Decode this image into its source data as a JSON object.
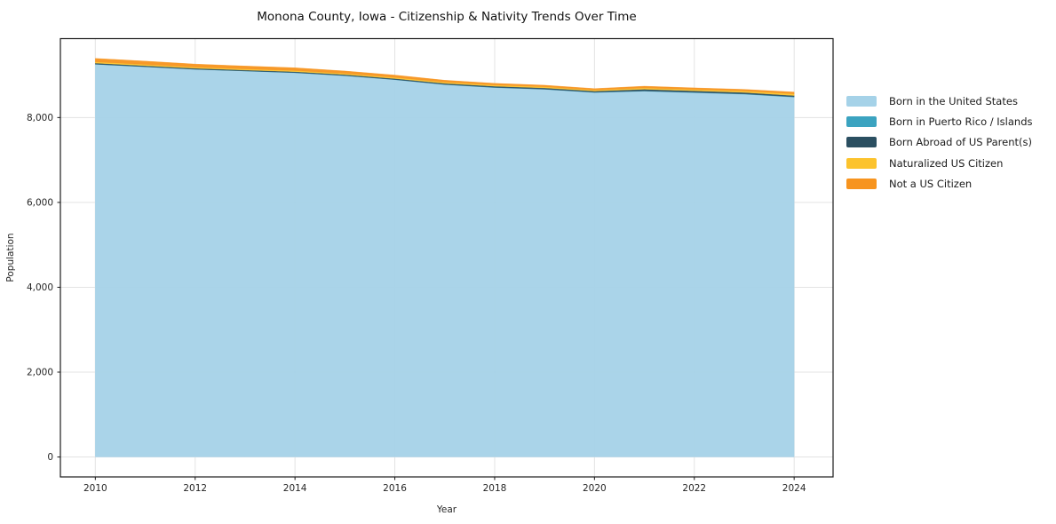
{
  "chart_data": {
    "type": "area",
    "stacked": true,
    "title": "Monona County, Iowa - Citizenship & Nativity Trends Over Time",
    "xlabel": "Year",
    "ylabel": "Population",
    "x": [
      2010,
      2011,
      2012,
      2013,
      2014,
      2015,
      2016,
      2017,
      2018,
      2019,
      2020,
      2021,
      2022,
      2023,
      2024
    ],
    "series": [
      {
        "name": "Born in the United States",
        "color": "#a5d2e8",
        "values": [
          9255,
          9195,
          9135,
          9095,
          9055,
          8985,
          8890,
          8775,
          8705,
          8665,
          8590,
          8620,
          8585,
          8550,
          8480
        ]
      },
      {
        "name": "Born in Puerto Rico / Islands",
        "color": "#3ba3c0",
        "values": [
          3,
          3,
          3,
          3,
          4,
          4,
          4,
          5,
          5,
          5,
          6,
          8,
          8,
          8,
          8
        ]
      },
      {
        "name": "Born Abroad of US Parent(s)",
        "color": "#2b4f61",
        "values": [
          25,
          24,
          23,
          22,
          22,
          23,
          24,
          26,
          28,
          28,
          26,
          38,
          36,
          34,
          30
        ]
      },
      {
        "name": "Naturalized US Citizen",
        "color": "#fcc32d",
        "values": [
          28,
          28,
          27,
          26,
          26,
          27,
          28,
          28,
          28,
          28,
          26,
          32,
          32,
          34,
          40
        ]
      },
      {
        "name": "Not a US Citizen",
        "color": "#f7941e",
        "values": [
          85,
          80,
          74,
          70,
          66,
          60,
          55,
          46,
          42,
          38,
          35,
          42,
          40,
          38,
          45
        ]
      }
    ],
    "xticks": [
      2010,
      2012,
      2014,
      2016,
      2018,
      2020,
      2022,
      2024
    ],
    "xtick_labels": [
      "2010",
      "2012",
      "2014",
      "2016",
      "2018",
      "2020",
      "2022",
      "2024"
    ],
    "yticks": [
      0,
      2000,
      4000,
      6000,
      8000
    ],
    "ytick_labels": [
      "0",
      "2,000",
      "4,000",
      "6,000",
      "8,000"
    ],
    "xlim": [
      2009.3,
      2024.78
    ],
    "ylim": [
      -470,
      9860
    ],
    "grid": true,
    "grid_color": "#e3e3e3",
    "spine_color": "#1a1a1a",
    "legend_position": "right"
  }
}
